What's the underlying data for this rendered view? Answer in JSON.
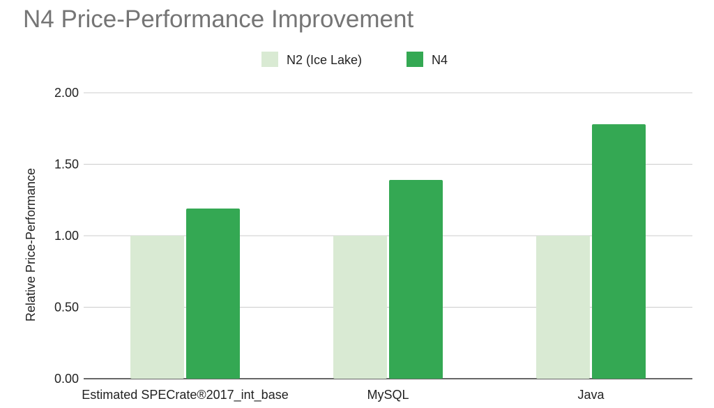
{
  "chart_data": {
    "type": "bar",
    "title": "N4 Price-Performance Improvement",
    "xlabel": "",
    "ylabel": "Relative Price-Performance",
    "categories": [
      "Estimated SPECrate®2017_int_base",
      "MySQL",
      "Java"
    ],
    "series": [
      {
        "name": "N2 (Ice Lake)",
        "color": "#d9ead3",
        "values": [
          1.0,
          1.0,
          1.0
        ]
      },
      {
        "name": "N4",
        "color": "#34a853",
        "values": [
          1.19,
          1.39,
          1.78
        ]
      }
    ],
    "ylim": [
      0,
      2
    ],
    "yticks": [
      "0.00",
      "0.50",
      "1.00",
      "1.50",
      "2.00"
    ],
    "grid": true,
    "legend": "top-center"
  }
}
